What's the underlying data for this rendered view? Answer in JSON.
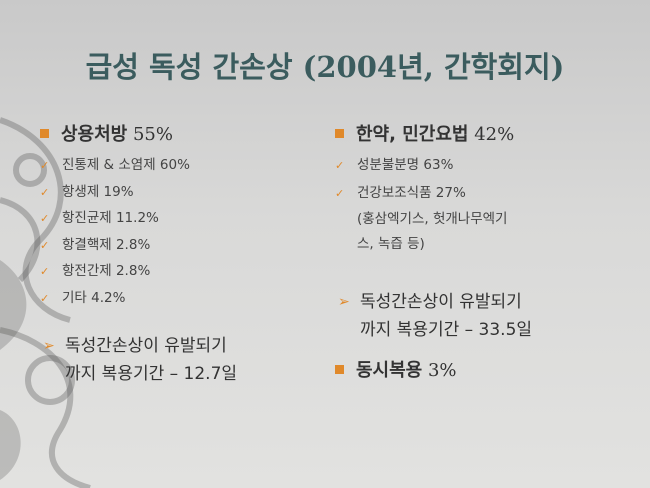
{
  "slide": {
    "title": "급성 독성 간손상 (2004년, 간학회지)",
    "left": {
      "heading": {
        "label": "상용처방",
        "value": "55%"
      },
      "items": [
        "진통제 & 소염제 60%",
        "항생제 19%",
        "항진균제 11.2%",
        "항결핵제 2.8%",
        "항전간제 2.8%",
        "기타 4.2%"
      ],
      "note": [
        "독성간손상이 유발되기",
        "까지 복용기간 – 12.7일"
      ]
    },
    "right": {
      "heading": {
        "label": "한약, 민간요법",
        "value": "42%"
      },
      "items": [
        "성분불분명 63%",
        "건강보조식품 27%"
      ],
      "detail": [
        "(홍삼엑기스, 헛개나무엑기",
        "스, 녹즙 등)"
      ],
      "note": [
        "독성간손상이 유발되기",
        "까지 복용기간 – 33.5일"
      ],
      "heading2": {
        "label": "동시복용",
        "value": "3%"
      }
    }
  }
}
